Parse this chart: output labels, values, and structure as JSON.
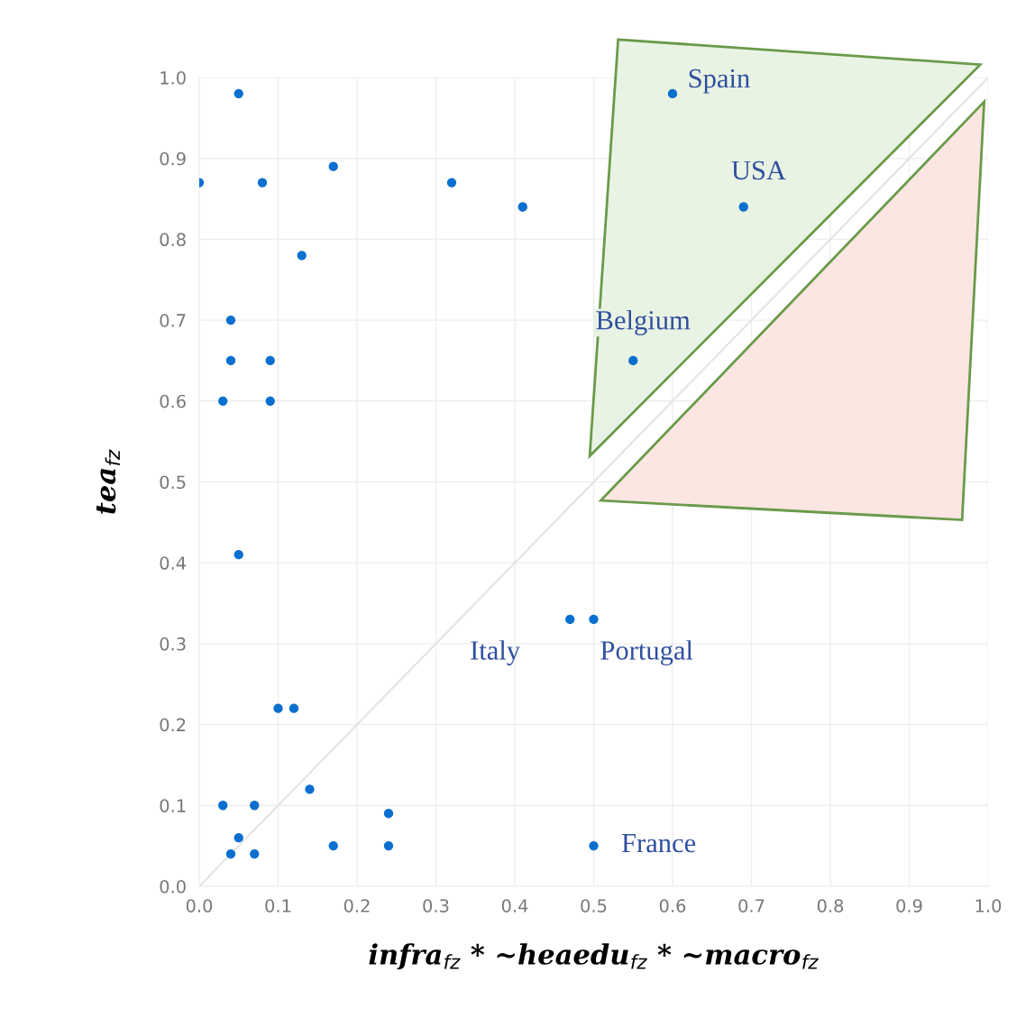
{
  "chart_data": {
    "type": "scatter",
    "xlabel": "infra$_{fz}$ * ~heaedu$_{fz}$ * ~macro$_{fz}$",
    "ylabel": "tea$_{fz}$",
    "xlim": [
      0,
      1
    ],
    "ylim": [
      0,
      1
    ],
    "xticks": [
      {
        "value": 0,
        "label": "0.0"
      },
      0.1,
      0.2,
      0.3,
      0.4,
      0.5,
      0.6,
      0.7,
      0.8,
      0.9,
      {
        "value": 1,
        "label": "1.0"
      }
    ],
    "yticks": [
      {
        "value": 0,
        "label": "0.0"
      },
      0.1,
      0.2,
      0.3,
      0.4,
      0.5,
      0.6,
      0.7,
      0.8,
      0.9,
      {
        "value": 1,
        "label": "1.0"
      }
    ],
    "grid": true,
    "marker": "circle",
    "series": [
      {
        "type": "line",
        "marker": "none",
        "color": "#e3e3e3",
        "x": [
          0,
          1
        ],
        "values": [
          0,
          1
        ]
      },
      {
        "color": "#0b6fcf",
        "x": [
          0.05,
          0,
          0.08,
          0.17,
          0.32,
          0.41,
          0.13,
          0.04,
          0.04,
          0.09,
          0.03,
          0.09,
          0.05,
          0.1,
          0.12,
          0.03,
          0.07,
          0.14,
          0.24,
          0.05,
          0.04,
          0.07,
          0.17,
          0.24,
          0.47,
          0.5,
          0.5,
          0.6,
          0.69,
          0.55
        ],
        "values": [
          0.98,
          0.87,
          0.87,
          0.89,
          0.87,
          0.84,
          0.78,
          0.7,
          0.65,
          0.65,
          0.6,
          0.6,
          0.41,
          0.22,
          0.22,
          0.1,
          0.1,
          0.12,
          0.09,
          0.06,
          0.04,
          0.04,
          0.05,
          0.05,
          0.33,
          0.33,
          0.05,
          0.98,
          0.84,
          0.65
        ]
      }
    ],
    "annotations": [
      {
        "text": "Spain",
        "x": 0.6,
        "y": 0.98
      },
      {
        "text": "USA",
        "x": 0.69,
        "y": 0.84
      },
      {
        "text": "Belgium",
        "x": 0.55,
        "y": 0.65
      },
      {
        "text": "Italy",
        "x": 0.47,
        "y": 0.33
      },
      {
        "text": "Portugal",
        "x": 0.5,
        "y": 0.33
      },
      {
        "text": "France",
        "x": 0.5,
        "y": 0.05
      }
    ]
  }
}
